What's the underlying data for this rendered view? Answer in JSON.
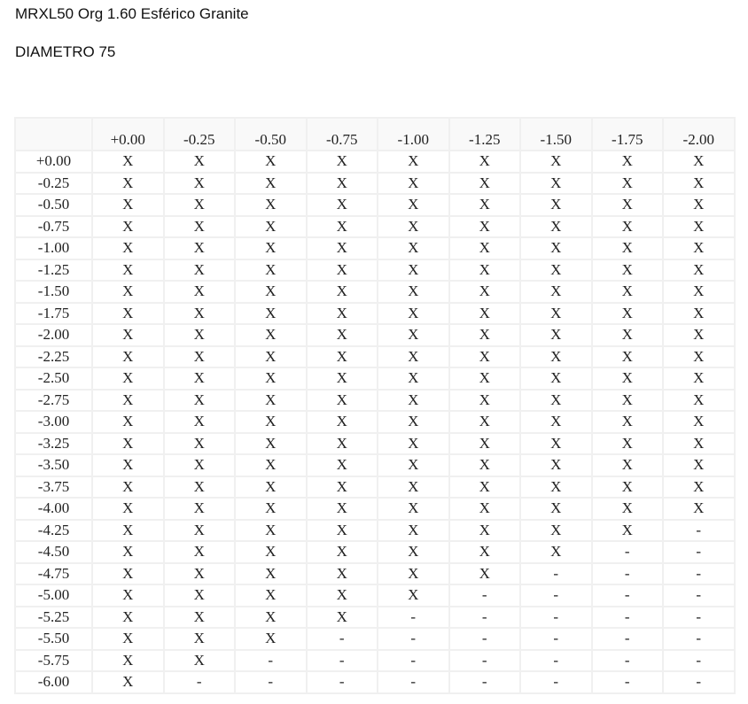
{
  "title": "MRXL50 Org 1.60 Esférico Granite",
  "subtitle": "DIAMETRO 75",
  "table": {
    "columns": [
      "+0.00",
      "-0.25",
      "-0.50",
      "-0.75",
      "-1.00",
      "-1.25",
      "-1.50",
      "-1.75",
      "-2.00"
    ],
    "rows": [
      {
        "label": "+0.00",
        "cells": [
          "X",
          "X",
          "X",
          "X",
          "X",
          "X",
          "X",
          "X",
          "X"
        ]
      },
      {
        "label": "-0.25",
        "cells": [
          "X",
          "X",
          "X",
          "X",
          "X",
          "X",
          "X",
          "X",
          "X"
        ]
      },
      {
        "label": "-0.50",
        "cells": [
          "X",
          "X",
          "X",
          "X",
          "X",
          "X",
          "X",
          "X",
          "X"
        ]
      },
      {
        "label": "-0.75",
        "cells": [
          "X",
          "X",
          "X",
          "X",
          "X",
          "X",
          "X",
          "X",
          "X"
        ]
      },
      {
        "label": "-1.00",
        "cells": [
          "X",
          "X",
          "X",
          "X",
          "X",
          "X",
          "X",
          "X",
          "X"
        ]
      },
      {
        "label": "-1.25",
        "cells": [
          "X",
          "X",
          "X",
          "X",
          "X",
          "X",
          "X",
          "X",
          "X"
        ]
      },
      {
        "label": "-1.50",
        "cells": [
          "X",
          "X",
          "X",
          "X",
          "X",
          "X",
          "X",
          "X",
          "X"
        ]
      },
      {
        "label": "-1.75",
        "cells": [
          "X",
          "X",
          "X",
          "X",
          "X",
          "X",
          "X",
          "X",
          "X"
        ]
      },
      {
        "label": "-2.00",
        "cells": [
          "X",
          "X",
          "X",
          "X",
          "X",
          "X",
          "X",
          "X",
          "X"
        ]
      },
      {
        "label": "-2.25",
        "cells": [
          "X",
          "X",
          "X",
          "X",
          "X",
          "X",
          "X",
          "X",
          "X"
        ]
      },
      {
        "label": "-2.50",
        "cells": [
          "X",
          "X",
          "X",
          "X",
          "X",
          "X",
          "X",
          "X",
          "X"
        ]
      },
      {
        "label": "-2.75",
        "cells": [
          "X",
          "X",
          "X",
          "X",
          "X",
          "X",
          "X",
          "X",
          "X"
        ]
      },
      {
        "label": "-3.00",
        "cells": [
          "X",
          "X",
          "X",
          "X",
          "X",
          "X",
          "X",
          "X",
          "X"
        ]
      },
      {
        "label": "-3.25",
        "cells": [
          "X",
          "X",
          "X",
          "X",
          "X",
          "X",
          "X",
          "X",
          "X"
        ]
      },
      {
        "label": "-3.50",
        "cells": [
          "X",
          "X",
          "X",
          "X",
          "X",
          "X",
          "X",
          "X",
          "X"
        ]
      },
      {
        "label": "-3.75",
        "cells": [
          "X",
          "X",
          "X",
          "X",
          "X",
          "X",
          "X",
          "X",
          "X"
        ]
      },
      {
        "label": "-4.00",
        "cells": [
          "X",
          "X",
          "X",
          "X",
          "X",
          "X",
          "X",
          "X",
          "X"
        ]
      },
      {
        "label": "-4.25",
        "cells": [
          "X",
          "X",
          "X",
          "X",
          "X",
          "X",
          "X",
          "X",
          "-"
        ]
      },
      {
        "label": "-4.50",
        "cells": [
          "X",
          "X",
          "X",
          "X",
          "X",
          "X",
          "X",
          "-",
          "-"
        ]
      },
      {
        "label": "-4.75",
        "cells": [
          "X",
          "X",
          "X",
          "X",
          "X",
          "X",
          "-",
          "-",
          "-"
        ]
      },
      {
        "label": "-5.00",
        "cells": [
          "X",
          "X",
          "X",
          "X",
          "X",
          "-",
          "-",
          "-",
          "-"
        ]
      },
      {
        "label": "-5.25",
        "cells": [
          "X",
          "X",
          "X",
          "X",
          "-",
          "-",
          "-",
          "-",
          "-"
        ]
      },
      {
        "label": "-5.50",
        "cells": [
          "X",
          "X",
          "X",
          "-",
          "-",
          "-",
          "-",
          "-",
          "-"
        ]
      },
      {
        "label": "-5.75",
        "cells": [
          "X",
          "X",
          "-",
          "-",
          "-",
          "-",
          "-",
          "-",
          "-"
        ]
      },
      {
        "label": "-6.00",
        "cells": [
          "X",
          "-",
          "-",
          "-",
          "-",
          "-",
          "-",
          "-",
          "-"
        ]
      }
    ]
  }
}
